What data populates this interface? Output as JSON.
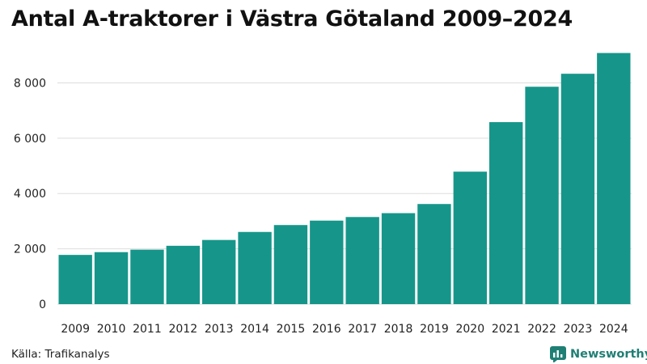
{
  "title": "Antal A-traktorer i Västra Götaland 2009–2024",
  "source": "Källa: Trafikanalys",
  "brand": {
    "name": "Newsworthy",
    "icon": "newsworthy-logo-icon",
    "color": "#1f7f74"
  },
  "chart_data": {
    "type": "bar",
    "title": "Antal A-traktorer i Västra Götaland 2009–2024",
    "xlabel": "",
    "ylabel": "",
    "categories": [
      "2009",
      "2010",
      "2011",
      "2012",
      "2013",
      "2014",
      "2015",
      "2016",
      "2017",
      "2018",
      "2019",
      "2020",
      "2021",
      "2022",
      "2023",
      "2024"
    ],
    "values": [
      1780,
      1880,
      1970,
      2110,
      2320,
      2610,
      2860,
      3020,
      3150,
      3290,
      3620,
      4790,
      6580,
      7860,
      8330,
      9080
    ],
    "ylim": [
      0,
      9300
    ],
    "yticks": [
      0,
      2000,
      4000,
      6000,
      8000
    ],
    "ytick_labels": [
      "0",
      "2 000",
      "4 000",
      "6 000",
      "8 000"
    ],
    "grid": true,
    "legend": "none",
    "bar_color": "#16968a",
    "grid_color": "#dddddd"
  }
}
